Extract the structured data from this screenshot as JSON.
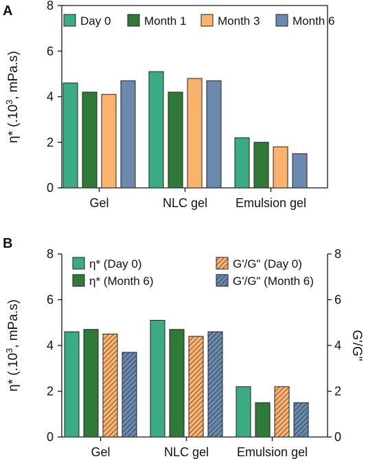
{
  "panels": [
    {
      "label": "A"
    },
    {
      "label": "B"
    }
  ],
  "colors": {
    "day0": "#3aab83",
    "month1": "#2f7a36",
    "month3": "#fbb26d",
    "month6": "#6a89ad",
    "axis": "#111111"
  },
  "chart_data": [
    {
      "type": "bar",
      "title": "",
      "categories": [
        "Gel",
        "NLC gel",
        "Emulsion gel"
      ],
      "ylabel_main": "η* (.10",
      "ylabel_sup": "3",
      "ylabel_tail": ", mPa.s)",
      "ylim": [
        0,
        8
      ],
      "yticks": [
        0,
        2,
        4,
        6,
        8
      ],
      "legend_position": "top",
      "grid": false,
      "series": [
        {
          "name": "Day 0",
          "values": [
            4.6,
            5.1,
            2.2
          ],
          "color": "#3aab83",
          "pattern": "solid"
        },
        {
          "name": "Month 1",
          "values": [
            4.2,
            4.2,
            2.0
          ],
          "color": "#2f7a36",
          "pattern": "solid"
        },
        {
          "name": "Month 3",
          "values": [
            4.1,
            4.8,
            1.8
          ],
          "color": "#fbb26d",
          "pattern": "solid"
        },
        {
          "name": "Month 6",
          "values": [
            4.7,
            4.7,
            1.5
          ],
          "color": "#6a89ad",
          "pattern": "solid"
        }
      ]
    },
    {
      "type": "bar",
      "title": "",
      "categories": [
        "Gel",
        "NLC gel",
        "Emulsion gel"
      ],
      "ylabel_main": "η* (.10",
      "ylabel_sup": "3",
      "ylabel_tail": ", mPa.s)",
      "y2label": "G'/G\"",
      "ylim": [
        0,
        8
      ],
      "y2lim": [
        0,
        8
      ],
      "yticks": [
        0,
        2,
        4,
        6,
        8
      ],
      "legend_position": "top",
      "grid": false,
      "series": [
        {
          "name": "η* (Day 0)",
          "values": [
            4.6,
            5.1,
            2.2
          ],
          "color": "#3aab83",
          "pattern": "solid",
          "axis": "left"
        },
        {
          "name": "η* (Month 6)",
          "values": [
            4.7,
            4.7,
            1.5
          ],
          "color": "#2f7a36",
          "pattern": "solid",
          "axis": "left"
        },
        {
          "name": "G'/G\" (Day 0)",
          "values": [
            4.5,
            4.4,
            2.2
          ],
          "color": "#fbb26d",
          "pattern": "hatched",
          "axis": "right"
        },
        {
          "name": "G'/G\" (Month 6)",
          "values": [
            3.7,
            4.6,
            1.5
          ],
          "color": "#6a89ad",
          "pattern": "hatched",
          "axis": "right"
        }
      ]
    }
  ]
}
